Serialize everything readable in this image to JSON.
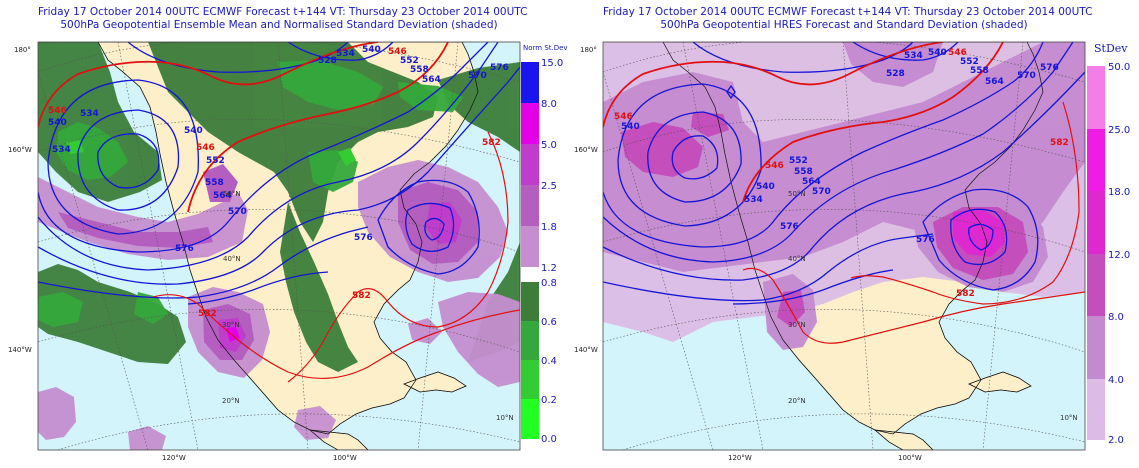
{
  "left_panel": {
    "title_line1": "Friday 17 October 2014 00UTC ECMWF Forecast t+144  VT: Thursday 23 October 2014 00UTC",
    "title_line2": "500hPa Geopotential Ensemble Mean and Normalised Standard Deviation (shaded)",
    "colorbar_title": "Norm St.Dev",
    "colorbar_upper": {
      "labels": [
        "15.0",
        "8.0",
        "5.0",
        "2.5",
        "1.8",
        "1.2"
      ],
      "colors": [
        "#1a14f0",
        "#e200e8",
        "#c03ccc",
        "#b45ec0",
        "#c68ed0"
      ]
    },
    "colorbar_lower": {
      "labels": [
        "0.8",
        "0.6",
        "0.4",
        "0.2",
        "0.0"
      ],
      "colors": [
        "#3c7d3a",
        "#35a83c",
        "#33cc33",
        "#22ff22"
      ]
    }
  },
  "right_panel": {
    "title_line1": "Friday 17 October 2014 00UTC ECMWF Forecast t+144  VT: Thursday 23 October 2014 00UTC",
    "title_line2": "500hPa Geopotential HRES Forecast and Standard Deviation (shaded)",
    "colorbar_title": "StDev",
    "colorbar": {
      "labels": [
        "50.0",
        "25.0",
        "18.0",
        "12.0",
        "8.0",
        "4.0",
        "2.0"
      ],
      "colors": [
        "#f47ee8",
        "#f01ce6",
        "#de28d0",
        "#c44ebc",
        "#c48ad0",
        "#dcbce6"
      ]
    }
  },
  "map_labels": {
    "lon_left": [
      "180°",
      "160°W",
      "140°W"
    ],
    "lon_bottom": [
      "120°W",
      "100°W"
    ],
    "lat": [
      "30°N",
      "40°N",
      "50°N",
      "20°N",
      "10°N"
    ]
  },
  "contours_left": {
    "blue": [
      "534",
      "540",
      "546",
      "552",
      "558",
      "564",
      "570",
      "576",
      "534",
      "540",
      "552",
      "558",
      "564",
      "570",
      "576",
      "576",
      "528",
      "534",
      "540"
    ],
    "red": [
      "546",
      "546",
      "582",
      "582",
      "582"
    ]
  },
  "contours_right": {
    "blue": [
      "534",
      "540",
      "546",
      "552",
      "558",
      "564",
      "570",
      "576",
      "534",
      "540",
      "552",
      "558",
      "564",
      "570",
      "576",
      "576",
      "528",
      "534",
      "540"
    ],
    "red": [
      "546",
      "546",
      "582",
      "582"
    ]
  },
  "colors": {
    "ocean": "#d4f4fb",
    "land": "#fdefc9",
    "blue_contour": "#1515d6",
    "red_contour": "#e01010",
    "title": "#1a1ab4"
  }
}
